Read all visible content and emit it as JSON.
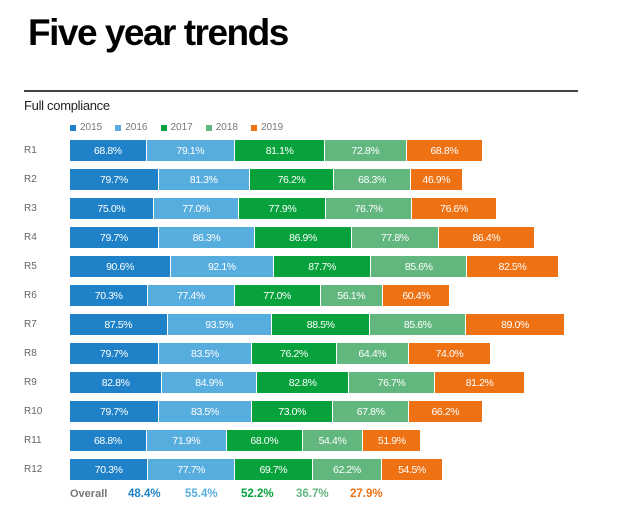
{
  "header": {
    "title": "Five year trends",
    "subtitle": "Full compliance"
  },
  "chart_data": {
    "type": "bar",
    "orientation": "horizontal",
    "stacked": true,
    "title": "Five year trends",
    "subtitle": "Full compliance",
    "xlabel": "",
    "ylabel": "",
    "grid": false,
    "legend_position": "top-left",
    "value_format": "percent",
    "categories": [
      "R1",
      "R2",
      "R3",
      "R4",
      "R5",
      "R6",
      "R7",
      "R8",
      "R9",
      "R10",
      "R11",
      "R12"
    ],
    "series": [
      {
        "name": "2015",
        "color": "#1f82c8",
        "values": [
          68.8,
          79.7,
          75.0,
          79.7,
          90.6,
          70.3,
          87.5,
          79.7,
          82.8,
          79.7,
          68.8,
          70.3
        ]
      },
      {
        "name": "2016",
        "color": "#58addf",
        "values": [
          79.1,
          81.3,
          77.0,
          86.3,
          92.1,
          77.4,
          93.5,
          83.5,
          84.9,
          83.5,
          71.9,
          77.7
        ]
      },
      {
        "name": "2017",
        "color": "#08a23c",
        "values": [
          81.1,
          76.2,
          77.9,
          86.9,
          87.7,
          77.0,
          88.5,
          76.2,
          82.8,
          73.0,
          68.0,
          69.7
        ]
      },
      {
        "name": "2018",
        "color": "#62b77f",
        "values": [
          72.8,
          68.3,
          76.7,
          77.8,
          85.6,
          56.1,
          85.6,
          64.4,
          76.7,
          67.8,
          54.4,
          62.2
        ]
      },
      {
        "name": "2019",
        "color": "#ee7214",
        "values": [
          68.8,
          46.9,
          76.6,
          86.4,
          82.5,
          60.4,
          89.0,
          74.0,
          81.2,
          66.2,
          51.9,
          54.5
        ]
      }
    ],
    "overall": {
      "label": "Overall",
      "values": [
        "48.4%",
        "55.4%",
        "52.2%",
        "36.7%",
        "27.9%"
      ]
    }
  }
}
